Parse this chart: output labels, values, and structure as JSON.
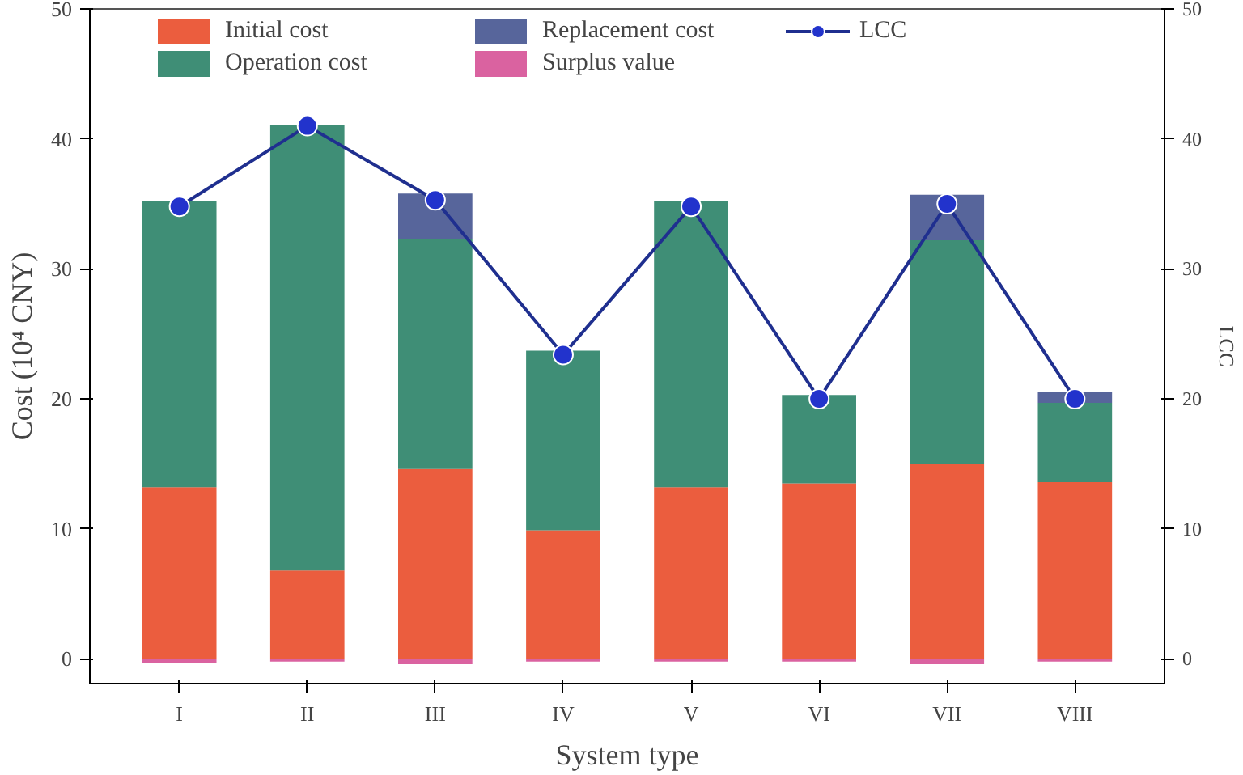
{
  "chart_data": {
    "type": "bar",
    "stacked": true,
    "xlabel": "System type",
    "ylabel": "Cost (10⁴ CNY)",
    "y2label": "LCC",
    "categories": [
      "I",
      "II",
      "III",
      "IV",
      "V",
      "VI",
      "VII",
      "VIII"
    ],
    "series": [
      {
        "name": "Initial cost",
        "color": "#e8411c",
        "values": [
          13.2,
          6.8,
          14.6,
          9.9,
          13.2,
          13.5,
          15.0,
          13.6
        ]
      },
      {
        "name": "Operation cost",
        "color": "#1d7a5e",
        "values": [
          22.0,
          34.3,
          17.7,
          13.8,
          22.0,
          6.8,
          17.2,
          6.1
        ]
      },
      {
        "name": "Replacement cost",
        "color": "#3a4a8a",
        "values": [
          0,
          0,
          3.5,
          0,
          0,
          0,
          3.5,
          0.8
        ]
      },
      {
        "name": "Surplus value",
        "color": "#d4478f",
        "values": [
          -0.3,
          -0.2,
          -0.4,
          -0.2,
          -0.2,
          -0.2,
          -0.4,
          -0.2
        ]
      },
      {
        "name": "LCC",
        "type": "line",
        "axis": "y2",
        "color": "#1f2f8f",
        "marker": "circle",
        "values": [
          34.8,
          41.0,
          35.3,
          23.4,
          34.8,
          20.0,
          35.0,
          20.0
        ]
      }
    ],
    "ylim": [
      -1.9,
      50
    ],
    "yticks": [
      0,
      10,
      20,
      30,
      40,
      50
    ],
    "y2lim": [
      -1.9,
      50
    ],
    "y2ticks": [
      0,
      10,
      20,
      30,
      40,
      50
    ],
    "grid": false,
    "legend": "top"
  }
}
